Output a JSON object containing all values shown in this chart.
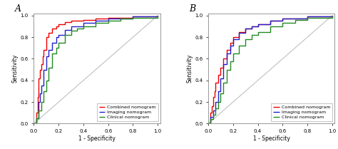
{
  "title_A": "A",
  "title_B": "B",
  "xlabel": "1 - Specificity",
  "ylabel": "Sensitivity",
  "xlim": [
    0.0,
    1.02
  ],
  "ylim": [
    0.0,
    1.02
  ],
  "xticks": [
    0.0,
    0.2,
    0.4,
    0.6,
    0.8,
    1.0
  ],
  "yticks": [
    0.0,
    0.2,
    0.4,
    0.6,
    0.8,
    1.0
  ],
  "xtick_labels": [
    "0.0",
    "0.2",
    "0.4",
    "0.6",
    "0.8",
    "1.0"
  ],
  "ytick_labels": [
    "0.0",
    "0.2",
    "0.4",
    "0.6",
    "0.8",
    "1.0"
  ],
  "colors": {
    "combined": "#EE0000",
    "imaging": "#2222CC",
    "clinical": "#228B22"
  },
  "legend_labels": [
    "Combined nomogram",
    "Imaging nomogram",
    "Clinical nomogram"
  ],
  "background": "#ffffff",
  "linewidth": 1.0,
  "diag_color": "#c0c0c0",
  "spine_color": "#888888"
}
